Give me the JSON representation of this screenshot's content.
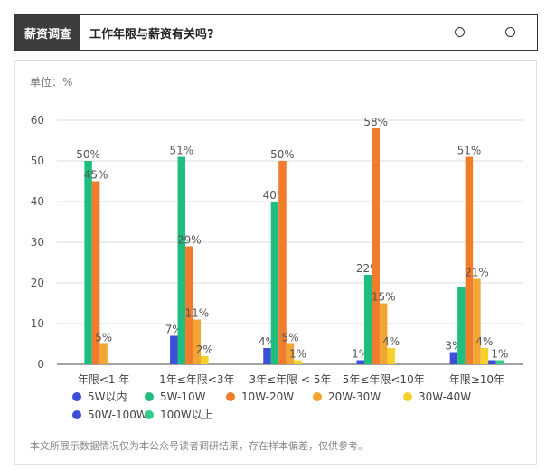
{
  "header": {
    "badge": "薪资调查",
    "question": "工作年限与薪资有关吗?",
    "option_icons": [
      "radio-circle-icon",
      "radio-circle-icon"
    ]
  },
  "unit_label": "单位：%",
  "footnote": "本文所展示数据情况仅为本公众号读者调研结果，存在样本偏差，仅供参考。",
  "chart_data": {
    "type": "bar",
    "categories": [
      "年限<1 年",
      "1年≤年限<3年",
      "3年≤年限 < 5年",
      "5年≤年限<10年",
      "年限≥10年"
    ],
    "ylim": [
      0,
      60
    ],
    "yticks": [
      0,
      10,
      20,
      30,
      40,
      50,
      60
    ],
    "grid": true,
    "legend_position": "bottom",
    "series": [
      {
        "name": "5W以内",
        "color": "#3b4fd8",
        "values": [
          0,
          7,
          4,
          1,
          3
        ],
        "labels": [
          "",
          "7%",
          "4%",
          "1%",
          "3%"
        ]
      },
      {
        "name": "5W-10W",
        "color": "#1fbd7e",
        "values": [
          50,
          51,
          40,
          22,
          19
        ],
        "labels": [
          "50%",
          "51%",
          "40%",
          "22%",
          ""
        ]
      },
      {
        "name": "10W-20W",
        "color": "#f07c2c",
        "values": [
          45,
          29,
          50,
          58,
          51
        ],
        "labels": [
          "45%",
          "29%",
          "50%",
          "58%",
          "51%"
        ]
      },
      {
        "name": "20W-30W",
        "color": "#f3a533",
        "values": [
          5,
          11,
          5,
          15,
          21
        ],
        "labels": [
          "5%",
          "11%",
          "5%",
          "15%",
          "21%"
        ]
      },
      {
        "name": "30W-40W",
        "color": "#f6d12c",
        "values": [
          0,
          2,
          1,
          4,
          4
        ],
        "labels": [
          "",
          "2%",
          "1%",
          "4%",
          "4%"
        ]
      },
      {
        "name": "50W-100W",
        "color": "#3d4ed6",
        "values": [
          0,
          0,
          0,
          0,
          1
        ],
        "labels": [
          "",
          "",
          "",
          "",
          ""
        ]
      },
      {
        "name": "100W以上",
        "color": "#34cc8c",
        "values": [
          0,
          0,
          0,
          0,
          1
        ],
        "labels": [
          "",
          "",
          "",
          "",
          "1%"
        ]
      }
    ]
  }
}
